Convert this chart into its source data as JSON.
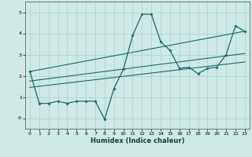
{
  "xlabel": "Humidex (Indice chaleur)",
  "ylabel": "",
  "bg_color": "#ceeae6",
  "grid_color": "#aed4ce",
  "line_color": "#1a6b6b",
  "x_data": [
    0,
    1,
    2,
    3,
    4,
    5,
    6,
    7,
    8,
    9,
    10,
    11,
    12,
    13,
    14,
    15,
    16,
    17,
    18,
    19,
    20,
    21,
    22,
    23
  ],
  "y_main": [
    2.2,
    0.7,
    0.7,
    0.8,
    0.7,
    0.8,
    0.8,
    0.8,
    -0.05,
    1.4,
    2.3,
    3.9,
    4.9,
    4.9,
    3.6,
    3.2,
    2.35,
    2.4,
    2.1,
    2.35,
    2.4,
    3.0,
    4.35,
    4.1
  ],
  "xlim": [
    -0.5,
    23.5
  ],
  "ylim": [
    -0.5,
    5.5
  ],
  "xticks": [
    0,
    1,
    2,
    3,
    4,
    5,
    6,
    7,
    8,
    9,
    10,
    11,
    12,
    13,
    14,
    15,
    16,
    17,
    18,
    19,
    20,
    21,
    22,
    23
  ],
  "yticks": [
    0,
    1,
    2,
    3,
    4,
    5
  ],
  "ytick_labels": [
    "-0",
    "1",
    "2",
    "3",
    "4",
    "5"
  ],
  "reg_lines": [
    {
      "x0": 0,
      "y0": 2.2,
      "x1": 23,
      "y1": 4.1
    },
    {
      "x0": 0,
      "y0": 1.75,
      "x1": 23,
      "y1": 3.05
    },
    {
      "x0": 0,
      "y0": 1.45,
      "x1": 23,
      "y1": 2.65
    }
  ]
}
